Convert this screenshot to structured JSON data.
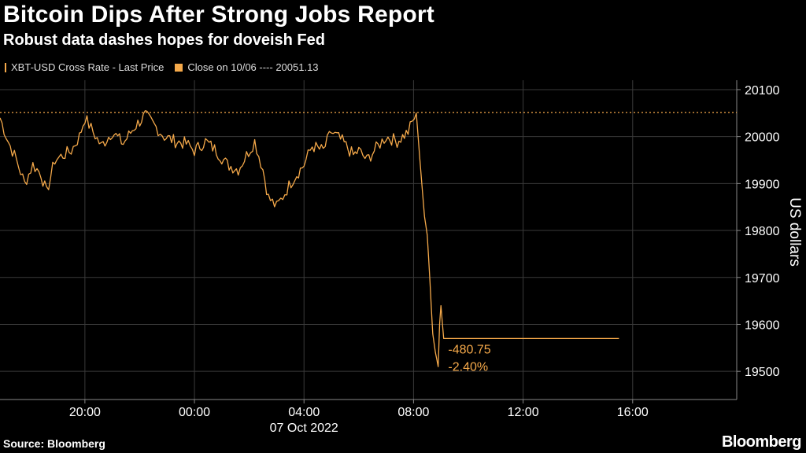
{
  "title": "Bitcoin Dips After Strong Jobs Report",
  "subtitle": "Robust data dashes hopes for doveish Fed",
  "legend": {
    "series_label": "XBT-USD Cross Rate - Last Price",
    "ref_label": "Close on 10/06 ---- 20051.13"
  },
  "source": "Source: Bloomberg",
  "brand": "Bloomberg",
  "colors": {
    "line": "#f5a94a",
    "grid": "#3a3a3a",
    "axis": "#888888",
    "text": "#ffffff"
  },
  "chart_data": {
    "type": "line",
    "series": [
      {
        "name": "XBT-USD Cross Rate - Last Price",
        "x_hours": [
          16.9,
          17.2,
          17.5,
          17.8,
          18.1,
          18.4,
          18.6,
          18.9,
          19.2,
          19.5,
          19.8,
          20.0,
          20.3,
          20.6,
          21.0,
          21.4,
          21.8,
          22.2,
          22.6,
          22.9,
          23.3,
          23.7,
          24.0,
          24.4,
          24.8,
          25.2,
          25.6,
          25.9,
          26.2,
          26.5,
          26.7,
          27.0,
          27.3,
          27.6,
          28.0,
          28.3,
          28.7,
          29.0,
          29.4,
          29.8,
          30.0,
          30.3,
          30.7,
          31.0,
          31.4,
          31.8,
          32.1,
          32.3,
          32.4,
          32.5,
          32.6,
          32.7,
          32.8,
          32.9,
          32.95,
          33.0,
          33.1,
          33.2,
          33.5,
          35.0,
          36.0,
          37.0,
          38.0,
          39.5
        ],
        "values": [
          20040,
          19990,
          19950,
          19900,
          19940,
          19920,
          19880,
          19950,
          19960,
          19970,
          20000,
          20040,
          20010,
          19980,
          20010,
          19985,
          20020,
          20045,
          20020,
          20000,
          19990,
          19985,
          19970,
          19990,
          19970,
          19940,
          19930,
          19960,
          19990,
          19930,
          19870,
          19850,
          19880,
          19910,
          19940,
          19980,
          19970,
          20010,
          19990,
          19960,
          19970,
          19950,
          19980,
          20000,
          19990,
          20010,
          20050,
          19900,
          19830,
          19790,
          19690,
          19580,
          19540,
          19510,
          19600,
          19640,
          19570,
          19570,
          19570,
          19570,
          19570,
          19570,
          19570,
          19570
        ]
      }
    ],
    "reference_line": {
      "label": "Close on 10/06",
      "value": 20051.13
    },
    "annotations": [
      "-480.75",
      "-2.40%"
    ],
    "annotation_value": 19570,
    "x_ticks": [
      {
        "hour": 20,
        "label": "20:00"
      },
      {
        "hour": 24,
        "label": "00:00"
      },
      {
        "hour": 28,
        "label": "04:00"
      },
      {
        "hour": 32,
        "label": "08:00"
      },
      {
        "hour": 36,
        "label": "12:00"
      },
      {
        "hour": 40,
        "label": "16:00"
      }
    ],
    "x_date_label": "07 Oct 2022",
    "x_range": [
      16.9,
      43.8
    ],
    "y_ticks": [
      19500,
      19600,
      19700,
      19800,
      19900,
      20000,
      20100
    ],
    "ylim": [
      19440,
      20120
    ],
    "ylabel": "US dollars",
    "grid": true
  }
}
